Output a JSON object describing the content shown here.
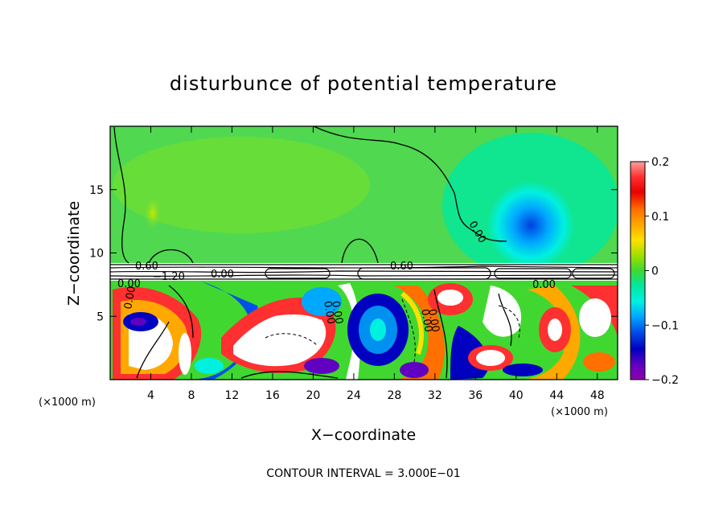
{
  "chart_data": {
    "type": "heatmap",
    "title": "disturbunce of potential temperature",
    "xlabel": "X−coordinate",
    "ylabel": "Z−coordinate",
    "x_unit": "(×1000 m)",
    "y_unit": "(×1000 m)",
    "xlim": [
      0,
      50
    ],
    "ylim": [
      0,
      20
    ],
    "x_ticks": [
      4,
      8,
      12,
      16,
      20,
      24,
      28,
      32,
      36,
      40,
      44,
      48
    ],
    "y_ticks": [
      5,
      10,
      15
    ],
    "colorbar": {
      "vmin": -0.2,
      "vmax": 0.2,
      "ticks": [
        0.2,
        0.1,
        0,
        -0.1,
        -0.2
      ],
      "tick_labels": [
        "0.2",
        "0.1",
        "0",
        "−0.1",
        "−0.2"
      ],
      "colors": [
        "#f8a0a0",
        "#ff3030",
        "#e80000",
        "#ff7000",
        "#ffa800",
        "#ffe000",
        "#c0e800",
        "#80e000",
        "#40d800",
        "#00d050",
        "#00e8a0",
        "#00f0e0",
        "#00c8ff",
        "#0090f0",
        "#0040e0",
        "#0000c0",
        "#6000c0",
        "#9000b0"
      ]
    },
    "contour_labels": [
      "0.60",
      "0.00",
      "−1.20",
      "0.00",
      "0.60",
      "0.00",
      "0.00",
      "0.00",
      "0.00",
      "0.00",
      "0.00",
      "0.00"
    ],
    "contour_interval_text": "CONTOUR INTERVAL = 3.000E−01"
  }
}
